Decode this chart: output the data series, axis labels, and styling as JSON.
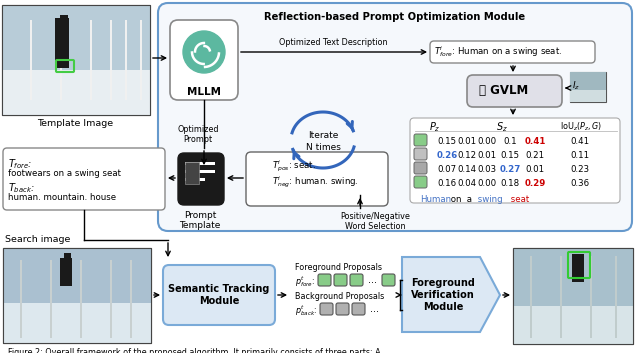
{
  "title": "Reflection-based Prompt Optimization Module",
  "caption": "Figure 2: Overall framework of the proposed algorithm. It primarily consists of three parts: A",
  "bg_color": "#ffffff",
  "table_data": [
    {
      "color": "#88cc88",
      "vals": [
        "0.15",
        "0.01",
        "0.00",
        "0.1",
        "0.41",
        "0.41"
      ],
      "highlight_col": 4,
      "highlight_type": "red"
    },
    {
      "color": "#c0c0c0",
      "vals": [
        "0.26",
        "0.12",
        "0.01",
        "0.15",
        "0.21",
        "0.11"
      ],
      "highlight_col": 0,
      "highlight_type": "blue"
    },
    {
      "color": "#a8a8a8",
      "vals": [
        "0.07",
        "0.14",
        "0.03",
        "0.27",
        "0.01",
        "0.23"
      ],
      "highlight_col": 3,
      "highlight_type": "blue"
    },
    {
      "color": "#88cc88",
      "vals": [
        "0.16",
        "0.04",
        "0.00",
        "0.18",
        "0.29",
        "0.36"
      ],
      "highlight_col": 4,
      "highlight_type": "red"
    }
  ],
  "word_colors": [
    {
      "word": "Human",
      "color": "#4472c4"
    },
    {
      "word": " on",
      "color": "#000000"
    },
    {
      "word": " a",
      "color": "#000000"
    },
    {
      "word": " swing",
      "color": "#4472c4"
    },
    {
      "word": " seat",
      "color": "#cc0000"
    }
  ]
}
